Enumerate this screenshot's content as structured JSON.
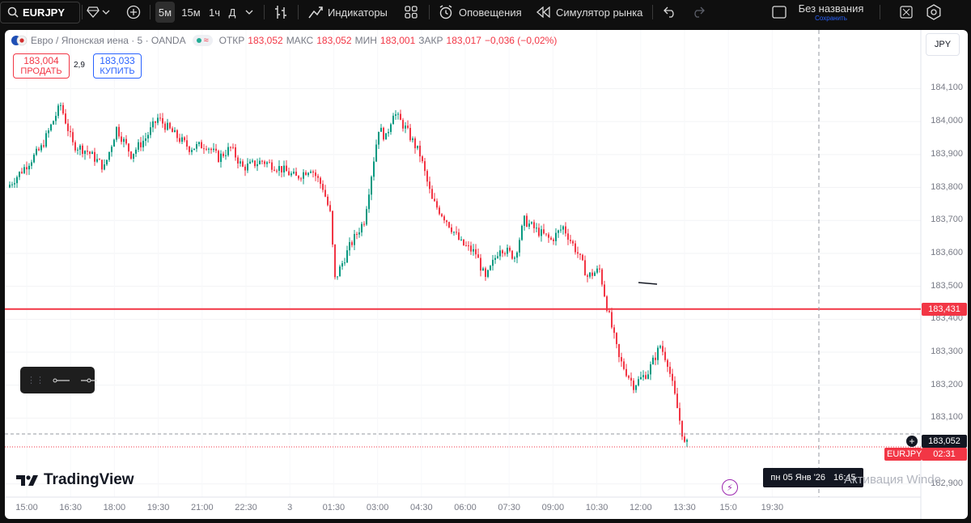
{
  "toolbar": {
    "symbol": "EURJPY",
    "timeframes": [
      "5м",
      "15м",
      "1ч",
      "Д"
    ],
    "active_timeframe": "5м",
    "indicators": "Индикаторы",
    "alerts": "Оповещения",
    "replay": "Симулятор рынка",
    "layout_name": "Без названия",
    "layout_status": "Сохранить"
  },
  "legend": {
    "title": "Евро / Японская иена · 5 · OANDA",
    "open_label": "ОТКР",
    "open": "183,052",
    "high_label": "МАКС",
    "high": "183,052",
    "low_label": "МИН",
    "low": "183,001",
    "close_label": "ЗАКР",
    "close": "183,017",
    "change": "−0,036 (−0,02%)"
  },
  "trade": {
    "sell_price": "183,004",
    "sell_label": "ПРОДАТЬ",
    "spread": "2,9",
    "buy_price": "183,033",
    "buy_label": "КУПИТЬ"
  },
  "currency_button": "JPY",
  "price_axis": {
    "labels": [
      "184,100",
      "184,000",
      "183,900",
      "183,800",
      "183,700",
      "183,600",
      "183,500",
      "183,400",
      "183,300",
      "183,200",
      "183,100",
      "182,900"
    ],
    "hline_label": "183,431",
    "current_price": "183,052",
    "symbol_tag": "EURJPY",
    "countdown": "02:31"
  },
  "time_axis": {
    "labels": [
      "15:00",
      "16:30",
      "18:00",
      "19:30",
      "21:00",
      "22:30",
      "3",
      "01:30",
      "03:00",
      "04:30",
      "06:00",
      "07:30",
      "09:00",
      "10:30",
      "12:00",
      "13:30",
      "15:0",
      "19:30"
    ],
    "crosshair_label_date": "пн 05 Янв '26",
    "crosshair_label_time": "16:45"
  },
  "brand": "TradingView",
  "watermark": "Активация Windo",
  "colors": {
    "up": "#089981",
    "down": "#f23645",
    "hline": "#f23645",
    "accent": "#2962ff"
  },
  "icons": [
    "search-icon",
    "diamond-icon",
    "chevron-down-icon",
    "plus-icon",
    "bar-style-icon",
    "indicators-icon",
    "templates-icon",
    "alarm-icon",
    "replay-icon",
    "undo-icon",
    "redo-icon",
    "layout-icon",
    "fullscreen-icon",
    "settings-icon",
    "lightning-icon"
  ],
  "chart_data": {
    "type": "candlestick",
    "symbol": "EURJPY",
    "interval": "5",
    "ylim": [
      182.87,
      184.17
    ],
    "y_ticks": [
      184.1,
      184.0,
      183.9,
      183.8,
      183.7,
      183.6,
      183.5,
      183.4,
      183.3,
      183.2,
      183.1,
      182.9
    ],
    "x_ticks": [
      "15:00",
      "16:30",
      "18:00",
      "19:30",
      "21:00",
      "22:30",
      "3",
      "01:30",
      "03:00",
      "04:30",
      "06:00",
      "07:30",
      "09:00",
      "10:30",
      "12:00",
      "13:30"
    ],
    "horizontal_line": 183.431,
    "current_price": 183.052,
    "anchors": [
      {
        "t": "14:25",
        "p": 183.8
      },
      {
        "t": "15:00",
        "p": 183.86
      },
      {
        "t": "15:35",
        "p": 183.92
      },
      {
        "t": "16:05",
        "p": 184.02
      },
      {
        "t": "16:15",
        "p": 184.05
      },
      {
        "t": "16:40",
        "p": 183.93
      },
      {
        "t": "17:10",
        "p": 183.91
      },
      {
        "t": "17:45",
        "p": 183.86
      },
      {
        "t": "18:10",
        "p": 183.98
      },
      {
        "t": "18:40",
        "p": 183.9
      },
      {
        "t": "19:10",
        "p": 183.95
      },
      {
        "t": "19:35",
        "p": 184.01
      },
      {
        "t": "20:10",
        "p": 183.96
      },
      {
        "t": "20:40",
        "p": 183.92
      },
      {
        "t": "21:15",
        "p": 183.93
      },
      {
        "t": "21:40",
        "p": 183.89
      },
      {
        "t": "22:05",
        "p": 183.92
      },
      {
        "t": "22:30",
        "p": 183.86
      },
      {
        "t": "23:10",
        "p": 183.88
      },
      {
        "t": "23:45",
        "p": 183.86
      },
      {
        "t": "00:20",
        "p": 183.83
      },
      {
        "t": "00:50",
        "p": 183.86
      },
      {
        "t": "01:15",
        "p": 183.8
      },
      {
        "t": "01:30",
        "p": 183.72
      },
      {
        "t": "01:40",
        "p": 183.52
      },
      {
        "t": "02:10",
        "p": 183.62
      },
      {
        "t": "02:40",
        "p": 183.7
      },
      {
        "t": "03:10",
        "p": 183.98
      },
      {
        "t": "03:25",
        "p": 183.95
      },
      {
        "t": "03:40",
        "p": 184.03
      },
      {
        "t": "04:05",
        "p": 183.98
      },
      {
        "t": "04:35",
        "p": 183.9
      },
      {
        "t": "05:00",
        "p": 183.76
      },
      {
        "t": "05:30",
        "p": 183.7
      },
      {
        "t": "06:00",
        "p": 183.63
      },
      {
        "t": "06:30",
        "p": 183.6
      },
      {
        "t": "06:50",
        "p": 183.52
      },
      {
        "t": "07:20",
        "p": 183.62
      },
      {
        "t": "07:50",
        "p": 183.59
      },
      {
        "t": "08:10",
        "p": 183.7
      },
      {
        "t": "08:35",
        "p": 183.67
      },
      {
        "t": "09:05",
        "p": 183.64
      },
      {
        "t": "09:30",
        "p": 183.68
      },
      {
        "t": "10:00",
        "p": 183.6
      },
      {
        "t": "10:20",
        "p": 183.53
      },
      {
        "t": "10:45",
        "p": 183.55
      },
      {
        "t": "11:00",
        "p": 183.44
      },
      {
        "t": "11:25",
        "p": 183.28
      },
      {
        "t": "11:55",
        "p": 183.2
      },
      {
        "t": "12:25",
        "p": 183.24
      },
      {
        "t": "12:50",
        "p": 183.32
      },
      {
        "t": "13:05",
        "p": 183.27
      },
      {
        "t": "13:25",
        "p": 183.13
      },
      {
        "t": "13:40",
        "p": 183.02
      }
    ]
  }
}
